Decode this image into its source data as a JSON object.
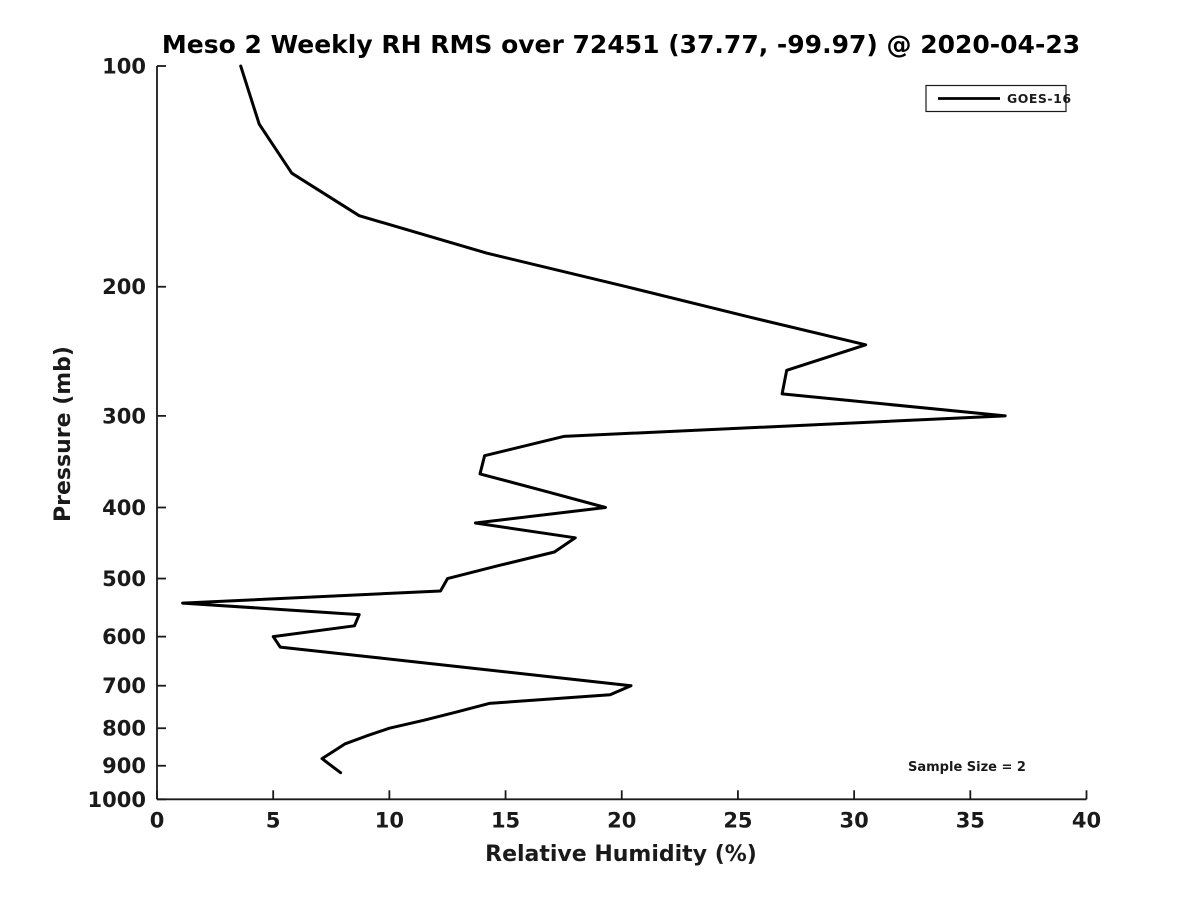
{
  "page": {
    "background": "#ffffff"
  },
  "chart_data": {
    "type": "line",
    "title": "Meso 2 Weekly RH RMS over 72451 (37.77, -99.97) @ 2020-04-23",
    "xlabel": "Relative Humidity (%)",
    "ylabel": "Pressure (mb)",
    "xlim": [
      0,
      40
    ],
    "ylim": [
      100,
      1000
    ],
    "y_scale": "log",
    "y_axis_direction": "inverted",
    "x_ticks": [
      0,
      5,
      10,
      15,
      20,
      25,
      30,
      35,
      40
    ],
    "y_ticks": [
      100,
      200,
      300,
      400,
      500,
      600,
      700,
      800,
      900,
      1000
    ],
    "grid": false,
    "axis_color": "#1a1a1a",
    "legend": {
      "position": "top-right",
      "entries": [
        "GOES-16"
      ]
    },
    "annotation": "Sample Size = 2",
    "series": [
      {
        "name": "GOES-16",
        "color": "#000000",
        "points_rh_pressure": [
          [
            3.6,
            100
          ],
          [
            4.4,
            120
          ],
          [
            5.8,
            140
          ],
          [
            8.7,
            160
          ],
          [
            14.2,
            180
          ],
          [
            20.2,
            200
          ],
          [
            25.5,
            220
          ],
          [
            30.5,
            240
          ],
          [
            27.1,
            260
          ],
          [
            26.9,
            280
          ],
          [
            36.5,
            300
          ],
          [
            17.5,
            320
          ],
          [
            14.1,
            340
          ],
          [
            13.9,
            360
          ],
          [
            16.7,
            380
          ],
          [
            19.3,
            400
          ],
          [
            13.7,
            420
          ],
          [
            18.0,
            440
          ],
          [
            17.1,
            460
          ],
          [
            14.7,
            480
          ],
          [
            12.5,
            500
          ],
          [
            12.2,
            520
          ],
          [
            1.1,
            540
          ],
          [
            8.7,
            560
          ],
          [
            8.5,
            580
          ],
          [
            5.0,
            600
          ],
          [
            5.3,
            620
          ],
          [
            9.3,
            640
          ],
          [
            13.1,
            660
          ],
          [
            16.8,
            680
          ],
          [
            20.4,
            700
          ],
          [
            19.5,
            720
          ],
          [
            14.3,
            740
          ],
          [
            12.9,
            760
          ],
          [
            11.5,
            780
          ],
          [
            10.0,
            800
          ],
          [
            9.0,
            820
          ],
          [
            8.1,
            840
          ],
          [
            7.6,
            860
          ],
          [
            7.1,
            880
          ],
          [
            7.5,
            900
          ],
          [
            7.9,
            920
          ]
        ]
      }
    ]
  }
}
